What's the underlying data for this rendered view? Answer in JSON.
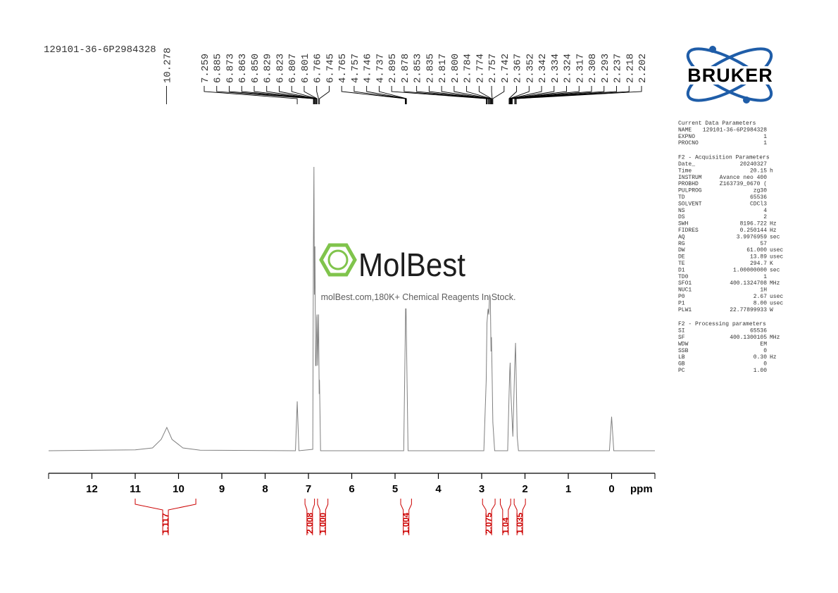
{
  "header": {
    "sample": "129101-36-6P2984328"
  },
  "chart_data": {
    "type": "nmr",
    "x_label": "ppm",
    "xlim": [
      13,
      -1
    ],
    "xticks": [
      12,
      11,
      10,
      9,
      8,
      7,
      6,
      5,
      4,
      3,
      2,
      1,
      0
    ],
    "ylim": [
      0,
      100
    ],
    "color": "#808080",
    "spectrum": {
      "x": [
        13.0,
        11.0,
        10.6,
        10.4,
        10.27,
        10.15,
        9.9,
        9.5,
        7.3,
        7.259,
        7.22,
        6.9,
        6.885,
        6.873,
        6.863,
        6.85,
        6.835,
        6.823,
        6.807,
        6.801,
        6.79,
        6.766,
        6.752,
        6.745,
        6.72,
        4.8,
        4.765,
        4.757,
        4.746,
        4.737,
        4.7,
        2.95,
        2.895,
        2.878,
        2.853,
        2.835,
        2.817,
        2.8,
        2.784,
        2.774,
        2.757,
        2.742,
        2.7,
        2.4,
        2.367,
        2.352,
        2.342,
        2.334,
        2.324,
        2.28,
        2.237,
        2.218,
        2.202,
        2.18,
        2.15,
        0.05,
        0.0,
        -0.05,
        -1.0
      ],
      "y": [
        0,
        0.3,
        1,
        4,
        8.2,
        4,
        1,
        0.2,
        0,
        17.4,
        0,
        0.5,
        72,
        100,
        55,
        72,
        30,
        30,
        47,
        48,
        30,
        48,
        20,
        25,
        0,
        0,
        40,
        50,
        50,
        40,
        0,
        0,
        25,
        45,
        50,
        48,
        55,
        54,
        35,
        40,
        25,
        10,
        0,
        0,
        20,
        28,
        31,
        25,
        20,
        5,
        30,
        38,
        25,
        5,
        0,
        0,
        12,
        0,
        0
      ]
    },
    "peak_labels": [
      10.278,
      7.259,
      6.885,
      6.873,
      6.863,
      {
        "value": 6.85,
        "label": "6.850"
      },
      6.829,
      6.823,
      6.807,
      6.801,
      6.766,
      6.745,
      4.765,
      4.757,
      4.746,
      4.737,
      2.895,
      2.878,
      2.853,
      2.835,
      2.817,
      {
        "value": 2.8,
        "label": "2.800"
      },
      2.784,
      2.774,
      2.757,
      2.742,
      2.367,
      2.352,
      2.342,
      2.334,
      2.324,
      2.317,
      2.308,
      2.293,
      2.237,
      2.218,
      2.202
    ],
    "integral_color": "#cc0000",
    "integrals": [
      {
        "from": 11.0,
        "to": 9.6,
        "value": 1.117
      },
      {
        "from": 7.08,
        "to": 6.86,
        "value": 2.008
      },
      {
        "from": 6.79,
        "to": 6.55,
        "value": {
          "value": 1,
          "label": "1.000"
        }
      },
      {
        "from": 4.87,
        "to": 4.62,
        "value": 1.004
      },
      {
        "from": 2.98,
        "to": 2.69,
        "value": 2.075
      },
      {
        "from": 2.57,
        "to": 2.33,
        "value": 1.04
      },
      {
        "from": 2.25,
        "to": 1.99,
        "value": 1.035
      }
    ]
  },
  "watermark": {
    "brand": "MolBest",
    "tagline": "molBest.com,180K+ Chemical Reagents In Stock."
  },
  "logo": "BRUKER",
  "parameters": [
    {
      "title": "Current Data Parameters",
      "rows": [
        [
          "NAME",
          "129101-36-6P2984328"
        ],
        [
          "EXPNO",
          "1"
        ],
        [
          "PROCNO",
          "1"
        ]
      ]
    },
    {
      "title": "F2 - Acquisition Parameters",
      "rows": [
        [
          "Date_",
          "20240327"
        ],
        [
          "Time",
          "20.15",
          "h"
        ],
        [
          "INSTRUM",
          "Avance neo 400"
        ],
        [
          "PROBHD",
          "Z163739_0670 ("
        ],
        [
          "PULPROG",
          "zg30"
        ],
        [
          "TD",
          "65536"
        ],
        [
          "SOLVENT",
          "CDCl3"
        ],
        [
          "NS",
          "4"
        ],
        [
          "DS",
          "2"
        ],
        [
          "SWH",
          "8196.722",
          "Hz"
        ],
        [
          "FIDRES",
          "0.250144",
          "Hz"
        ],
        [
          "AQ",
          "3.9976959",
          "sec"
        ],
        [
          "RG",
          "57"
        ],
        [
          "DW",
          "61.000",
          "usec"
        ],
        [
          "DE",
          "13.89",
          "usec"
        ],
        [
          "TE",
          "294.7",
          "K"
        ],
        [
          "D1",
          "1.00000000",
          "sec"
        ],
        [
          "TD0",
          "1"
        ],
        [
          "SFO1",
          "400.1324708",
          "MHz"
        ],
        [
          "NUC1",
          "1H"
        ],
        [
          "P0",
          "2.67",
          "usec"
        ],
        [
          "P1",
          "8.00",
          "usec"
        ],
        [
          "PLW1",
          "22.77899933",
          "W"
        ]
      ]
    },
    {
      "title": "F2 - Processing parameters",
      "rows": [
        [
          "SI",
          "65536"
        ],
        [
          "SF",
          "400.1300105",
          "MHz"
        ],
        [
          "WDW",
          "EM"
        ],
        [
          "SSB",
          "0"
        ],
        [
          "LB",
          "0.30",
          "Hz"
        ],
        [
          "GB",
          "0"
        ],
        [
          "PC",
          "1.00"
        ]
      ]
    }
  ]
}
